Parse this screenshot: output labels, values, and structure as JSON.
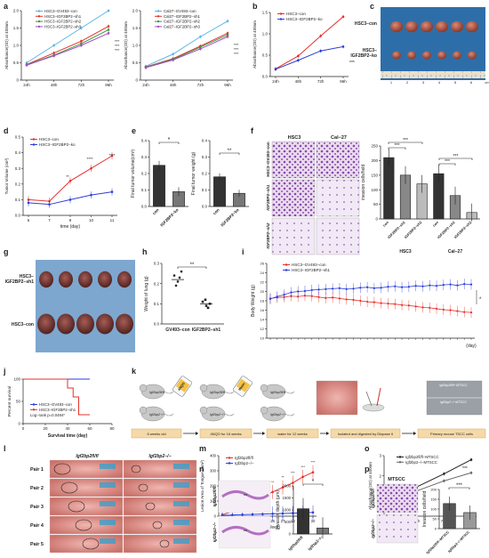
{
  "panel_letters": [
    "a",
    "b",
    "c",
    "d",
    "e",
    "f",
    "g",
    "h",
    "i",
    "j",
    "k",
    "l",
    "m",
    "n",
    "o",
    "p"
  ],
  "colors": {
    "red": "#e5312b",
    "blue": "#2c3ed8",
    "green": "#3c9a3c",
    "purple": "#a24fc6",
    "cyan": "#5ab6e6",
    "black": "#222222",
    "tissue": "#b8614c",
    "lung": "#7a3a36",
    "stain": "#8c48b0"
  },
  "panel_a": {
    "left": {
      "ylabel": "Absorbance(OD) at 450nm",
      "legend": [
        "HSC3−GV493−con",
        "HSC3−IGF2BP2−sh1",
        "HSC3−IGF2BP2−sh2",
        "HSC3−IGF2BP2−sh3"
      ],
      "xticks": [
        "24h",
        "48h",
        "72h",
        "96h"
      ],
      "yticks": [
        "0",
        "0.5",
        "1.0",
        "1.5",
        "2.0"
      ],
      "sig": [
        "***",
        "***",
        "***"
      ]
    },
    "right": {
      "ylabel": "Absorbance(OD) at 450nm",
      "legend": [
        "Cal27−GV493−con",
        "Cal27−IGF2BP2−sh1",
        "Cal27−IGF2BP2−sh2",
        "Cal27−IGF2BP2−sh3"
      ],
      "xticks": [
        "24h",
        "48h",
        "72h",
        "96h"
      ],
      "yticks": [
        "0",
        "0.5",
        "1.0",
        "1.5",
        "2.0"
      ],
      "sig": [
        "***",
        "***",
        "***"
      ]
    }
  },
  "panel_b": {
    "ylabel": "Absorbance(OD) at 450nm",
    "legend": [
      "HSC3−con",
      "HSC3−IGF2BP2−ko"
    ],
    "xticks": [
      "24h",
      "48h",
      "72h",
      "96h"
    ],
    "yticks": [
      "0.0",
      "0.5",
      "1.0",
      "1.5"
    ],
    "sig": "***"
  },
  "panel_c": {
    "row_labels": [
      "HSC3−con",
      "HSC3−IGF2BP2−ko"
    ],
    "ruler": [
      "1",
      "2",
      "3",
      "4",
      "5",
      "6",
      "cm"
    ]
  },
  "panel_d": {
    "ylabel": "Tumor Volume (cm³)",
    "xlabel": "time (day)",
    "legend": [
      "HSC3−con",
      "HSC3−IGF2BP2−ko"
    ],
    "xticks": [
      "5",
      "7",
      "9",
      "10",
      "11"
    ],
    "yticks": [
      "0.0",
      "0.1",
      "0.2",
      "0.3",
      "0.4",
      "0.5"
    ],
    "sig": [
      "**",
      "****",
      "****"
    ]
  },
  "panel_e": {
    "vol": {
      "ylabel": "Final tumor volume(cm³)",
      "cats": [
        "con",
        "IGF2BP2−ko"
      ],
      "yticks": [
        "0.0",
        "0.1",
        "0.2",
        "0.3",
        "0.4"
      ],
      "sig": "*"
    },
    "wt": {
      "ylabel": "Final tumor weight (g)",
      "cats": [
        "con",
        "IGF2BP2−ko"
      ],
      "yticks": [
        "0.0",
        "0.1",
        "0.2",
        "0.3",
        "0.4"
      ],
      "sig": "**"
    }
  },
  "panel_f": {
    "col_labels": [
      "HSC3",
      "Cal−27"
    ],
    "row_labels": [
      "HSC3−GV493−con",
      "IGF2BP2−sh1",
      "IGF2BP2−sh2"
    ],
    "ylabel": "invasion cells/field",
    "yticks": [
      "0",
      "50",
      "100",
      "150",
      "200",
      "250"
    ],
    "cats": [
      "con",
      "IGF2BP2−sh1",
      "IGF2BP2−sh2",
      "con",
      "IGF2BP2−sh1",
      "IGF2BP2−sh2"
    ],
    "groups": [
      "HSC3",
      "Cal−27"
    ],
    "sig": [
      "***",
      "***",
      "***",
      "***"
    ]
  },
  "panel_g": {
    "row_labels": [
      "HSC3−IGF2BP2−sh1",
      "HSC3−con"
    ]
  },
  "panel_h": {
    "ylabel": "Weight of lung (g)",
    "cats": [
      "GV493−con",
      "IGF2BP2−sh1"
    ],
    "yticks": [
      "0.0",
      "0.1",
      "0.2",
      "0.3"
    ],
    "sig": "**"
  },
  "panel_i": {
    "ylabel": "Body Weight (g)",
    "xlabel": "(day)",
    "legend": [
      "HSC3−GV493−con",
      "HSC3−IGF2BP2−sh1"
    ],
    "yticks": [
      "10",
      "12",
      "14",
      "16",
      "18",
      "20",
      "22",
      "24",
      "26"
    ],
    "sig": "*"
  },
  "panel_j": {
    "ylabel": "Percent survival",
    "xlabel": "Survival time (day)",
    "legend": [
      "HSC3−GV493−con",
      "HSC3−IGF2BP2−sh1"
    ],
    "stat": "Log−rank p=0.0494*",
    "xticks": [
      "0",
      "20",
      "40",
      "60",
      "80"
    ],
    "yticks": [
      "0",
      "50",
      "100"
    ]
  },
  "panel_k": {
    "steps": [
      "6 weeks old",
      "4NQO for 16 weeks",
      "water for 12 weeks",
      "Isolated and digested by Dispase II",
      "Primary mouse TSCC cells"
    ],
    "bottle1": "4NQO",
    "bottle2": "Water",
    "genos": [
      "Igf2bp2fl/fl",
      "Igf2bp2−/−"
    ],
    "img_labels": [
      "Igf2bp2fl/fl−MTSCC",
      "Igf2bp2−/−MTSCC"
    ]
  },
  "panel_l": {
    "col_labels": [
      "Igf2bp2fl/fl",
      "Igf2bp2−/−"
    ],
    "pairs": [
      "Pair 1",
      "Pair 2",
      "Pair 3",
      "Pair 4",
      "Pair 5"
    ]
  },
  "panel_m": {
    "ylabel": "Lesion Area of Tongue (mm²)",
    "xlabel": "Time (Week)",
    "legend": [
      "Igf2bp2fl/fl",
      "Igf2bp2−/−"
    ],
    "xticks": [
      "21",
      "22",
      "23",
      "24",
      "25",
      "26",
      "27",
      "28",
      "29",
      "30"
    ],
    "yticks": [
      "0",
      "100",
      "200",
      "300",
      "400"
    ],
    "sig": [
      "*",
      "*",
      "*",
      "**",
      "**",
      "**",
      "**",
      "***",
      "***",
      "***"
    ]
  },
  "panel_n": {
    "row_labels": [
      "Igf2bp2fl/fl",
      "Igf2bp2−/−"
    ],
    "ylabel": "Invasion depth (μm)",
    "cats": [
      "Igf2bp2fl/fl",
      "Igf2bp2−/−"
    ],
    "yticks": [
      "0",
      "500",
      "1000",
      "1500",
      "2000"
    ],
    "sig": "*"
  },
  "panel_o": {
    "ylabel": "Absorbance(OD) at 450nm",
    "legend": [
      "Igf2bp2fl/fl−MTSCC",
      "Igf2bp2−/−MTSCC"
    ],
    "xticks": [
      "24h",
      "48h",
      "72h",
      "96h"
    ],
    "yticks": [
      "0",
      "1",
      "2",
      "3"
    ],
    "sig": "***"
  },
  "panel_p": {
    "title": "MTSCC",
    "row_labels": [
      "Igf2bp2fl/fl",
      "Igf2bp2−/−"
    ],
    "ylabel": "Invasion cells/field",
    "cats": [
      "Igf2bp2fl/fl−MTSCC",
      "Igf2bp2−/−MTSCC"
    ],
    "yticks": [
      "0",
      "50",
      "100",
      "150",
      "200"
    ],
    "sig": "***"
  },
  "chart_data": [
    {
      "type": "line",
      "panel": "a-left",
      "x": [
        "24h",
        "48h",
        "72h",
        "96h"
      ],
      "ylim": [
        0,
        2.0
      ],
      "series": [
        {
          "name": "HSC3−GV493−con",
          "values": [
            0.5,
            1.0,
            1.5,
            2.0
          ]
        },
        {
          "name": "HSC3−IGF2BP2−sh1",
          "values": [
            0.45,
            0.78,
            1.12,
            1.55
          ]
        },
        {
          "name": "HSC3−IGF2BP2−sh2",
          "values": [
            0.44,
            0.72,
            1.05,
            1.45
          ]
        },
        {
          "name": "HSC3−IGF2BP2−sh3",
          "values": [
            0.43,
            0.7,
            1.0,
            1.35
          ]
        }
      ]
    },
    {
      "type": "line",
      "panel": "a-right",
      "x": [
        "24h",
        "48h",
        "72h",
        "96h"
      ],
      "ylim": [
        0,
        2.0
      ],
      "series": [
        {
          "name": "Cal27−GV493−con",
          "values": [
            0.4,
            0.75,
            1.25,
            1.7
          ]
        },
        {
          "name": "Cal27−IGF2BP2−sh1",
          "values": [
            0.38,
            0.62,
            0.98,
            1.35
          ]
        },
        {
          "name": "Cal27−IGF2BP2−sh2",
          "values": [
            0.37,
            0.6,
            0.95,
            1.3
          ]
        },
        {
          "name": "Cal27−IGF2BP2−sh3",
          "values": [
            0.36,
            0.58,
            0.9,
            1.25
          ]
        }
      ]
    },
    {
      "type": "line",
      "panel": "b",
      "x": [
        "24h",
        "48h",
        "72h",
        "96h"
      ],
      "ylim": [
        0,
        1.5
      ],
      "series": [
        {
          "name": "HSC3−con",
          "values": [
            0.18,
            0.48,
            0.95,
            1.4
          ]
        },
        {
          "name": "HSC3−IGF2BP2−ko",
          "values": [
            0.17,
            0.38,
            0.6,
            0.7
          ]
        }
      ]
    },
    {
      "type": "line",
      "panel": "d",
      "x": [
        "5",
        "7",
        "9",
        "10",
        "11"
      ],
      "ylim": [
        0,
        0.5
      ],
      "series": [
        {
          "name": "HSC3−con",
          "values": [
            0.1,
            0.09,
            0.22,
            0.3,
            0.38
          ]
        },
        {
          "name": "HSC3−IGF2BP2−ko",
          "values": [
            0.08,
            0.07,
            0.1,
            0.13,
            0.15
          ]
        }
      ]
    },
    {
      "type": "bar",
      "panel": "e-vol",
      "categories": [
        "con",
        "IGF2BP2−ko"
      ],
      "values": [
        0.25,
        0.09
      ],
      "ylim": [
        0,
        0.4
      ]
    },
    {
      "type": "bar",
      "panel": "e-wt",
      "categories": [
        "con",
        "IGF2BP2−ko"
      ],
      "values": [
        0.18,
        0.08
      ],
      "ylim": [
        0,
        0.4
      ]
    },
    {
      "type": "bar",
      "panel": "f",
      "categories": [
        "con",
        "IGF2BP2−sh1",
        "IGF2BP2−sh2",
        "con",
        "IGF2BP2−sh1",
        "IGF2BP2−sh2"
      ],
      "values": [
        210,
        150,
        120,
        155,
        80,
        22
      ],
      "ylim": [
        0,
        250
      ]
    },
    {
      "type": "scatter",
      "panel": "h",
      "categories": [
        "GV493−con",
        "IGF2BP2−sh1"
      ],
      "values": [
        0.22,
        0.1
      ],
      "ylim": [
        0,
        0.3
      ]
    },
    {
      "type": "line",
      "panel": "i",
      "ylim": [
        10,
        26
      ],
      "series": [
        {
          "name": "HSC3−GV493−con",
          "values": [
            18.5,
            18.7,
            18.8,
            19.0,
            18.9,
            19.1,
            19.0,
            18.8,
            18.6,
            18.7,
            18.5,
            18.3,
            18.2,
            18.0,
            17.8,
            17.7,
            17.5,
            17.4,
            17.3,
            17.1,
            17.0,
            16.8,
            16.6,
            16.5,
            16.3,
            16.1,
            16.0,
            15.8,
            15.6,
            15.5
          ]
        },
        {
          "name": "HSC3−IGF2BP2−sh1",
          "values": [
            18.4,
            18.9,
            19.3,
            19.8,
            20.0,
            20.1,
            20.3,
            20.4,
            20.5,
            20.6,
            20.7,
            20.5,
            20.6,
            20.8,
            20.9,
            20.7,
            20.8,
            21.0,
            21.1,
            20.9,
            21.0,
            21.2,
            21.1,
            21.3,
            21.2,
            21.4,
            21.5,
            21.3,
            21.6,
            21.5
          ]
        }
      ]
    },
    {
      "type": "line",
      "panel": "j",
      "xlim": [
        0,
        80
      ],
      "ylim": [
        0,
        100
      ],
      "series": [
        {
          "name": "HSC3−GV493−con",
          "x": [
            0,
            60
          ],
          "values": [
            100,
            100
          ]
        },
        {
          "name": "HSC3−IGF2BP2−sh1",
          "x": [
            0,
            40,
            40,
            45,
            45,
            50,
            50,
            60
          ],
          "values": [
            100,
            100,
            80,
            80,
            60,
            60,
            20,
            20
          ]
        }
      ]
    },
    {
      "type": "line",
      "panel": "m",
      "x": [
        "21",
        "22",
        "23",
        "24",
        "25",
        "26",
        "27",
        "28",
        "29",
        "30"
      ],
      "ylim": [
        0,
        400
      ],
      "series": [
        {
          "name": "Igf2bp2fl/fl",
          "values": [
            10,
            30,
            60,
            90,
            130,
            160,
            190,
            220,
            260,
            290
          ]
        },
        {
          "name": "Igf2bp2−/−",
          "values": [
            5,
            8,
            10,
            12,
            14,
            16,
            18,
            20,
            22,
            25
          ]
        }
      ]
    },
    {
      "type": "bar",
      "panel": "n",
      "categories": [
        "Igf2bp2fl/fl",
        "Igf2bp2−/−"
      ],
      "values": [
        1050,
        250
      ],
      "ylim": [
        0,
        2000
      ]
    },
    {
      "type": "line",
      "panel": "o",
      "x": [
        "24h",
        "48h",
        "72h",
        "96h"
      ],
      "ylim": [
        0,
        3
      ],
      "series": [
        {
          "name": "Igf2bp2fl/fl−MTSCC",
          "values": [
            0.6,
            1.45,
            2.1,
            2.8
          ]
        },
        {
          "name": "Igf2bp2−/−MTSCC",
          "values": [
            0.6,
            1.25,
            1.75,
            2.15
          ]
        }
      ]
    },
    {
      "type": "bar",
      "panel": "p",
      "categories": [
        "Igf2bp2fl/fl−MTSCC",
        "Igf2bp2−/−MTSCC"
      ],
      "values": [
        128,
        82
      ],
      "ylim": [
        0,
        200
      ]
    }
  ]
}
